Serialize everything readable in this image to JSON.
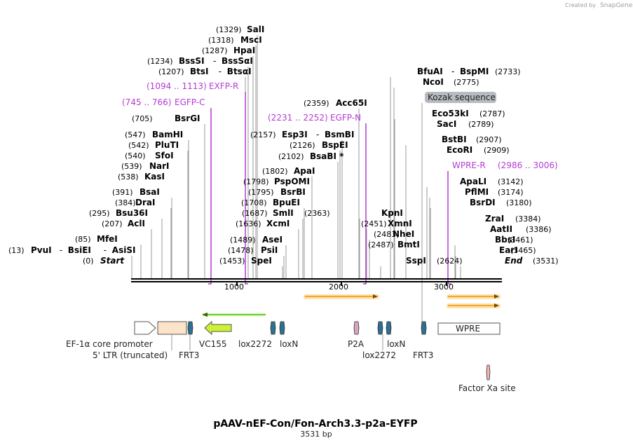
{
  "map": {
    "title": "pAAV-nEF-Con/Fon-Arch3.3-p2a-EYFP",
    "subtitle": "3531 bp",
    "length": 3531,
    "credit": "Created by",
    "brand": "SnapGene"
  },
  "ticks": [
    "1000",
    "2000",
    "3000"
  ],
  "colors": {
    "primer": "#b43cd2",
    "orf": "#f5a623",
    "green_arrow": "#66cc33",
    "lox_frt": "#2f6f8f"
  },
  "sites": [
    {
      "pos": "(13)",
      "name": "PvuI",
      "extra": [
        {
          "sep": "-",
          "name": "BsiEI"
        },
        {
          "sep": "-",
          "name": "AsiSI"
        }
      ]
    },
    {
      "pos": "(0)",
      "name": "Start",
      "italic": true
    },
    {
      "pos": "(85)",
      "name": "MfeI"
    },
    {
      "pos": "(207)",
      "name": "AclI"
    },
    {
      "pos": "(295)",
      "name": "Bsu36I"
    },
    {
      "pos": "(384)",
      "name": "DraI"
    },
    {
      "pos": "(391)",
      "name": "BsaI"
    },
    {
      "pos": "(538)",
      "name": "KasI"
    },
    {
      "pos": "(539)",
      "name": "NarI"
    },
    {
      "pos": "(540)",
      "name": "SfoI"
    },
    {
      "pos": "(542)",
      "name": "PluTI"
    },
    {
      "pos": "(547)",
      "name": "BamHI"
    },
    {
      "pos": "(705)",
      "name": "BsrGI"
    },
    {
      "pos": "(1207)",
      "name": "BtsI",
      "extra": [
        {
          "sep": "-",
          "name": "BtsαI"
        }
      ]
    },
    {
      "pos": "(1234)",
      "name": "BssSI",
      "extra": [
        {
          "sep": "-",
          "name": "BssSαI"
        }
      ]
    },
    {
      "pos": "(1287)",
      "name": "HpaI"
    },
    {
      "pos": "(1318)",
      "name": "MscI"
    },
    {
      "pos": "(1329)",
      "name": "SalI"
    },
    {
      "pos": "(1453)",
      "name": "SpeI"
    },
    {
      "pos": "(1478)",
      "name": "PsiI"
    },
    {
      "pos": "(1489)",
      "name": "AseI"
    },
    {
      "pos": "(1636)",
      "name": "XcmI"
    },
    {
      "pos": "(1687)",
      "name": "SmlI"
    },
    {
      "pos": "(1708)",
      "name": "BpuEI"
    },
    {
      "pos": "(1795)",
      "name": "BsrBI"
    },
    {
      "pos": "(1798)",
      "name": "PspOMI"
    },
    {
      "pos": "(1802)",
      "name": "ApaI"
    },
    {
      "pos": "(2102)",
      "name": "BsaBI *"
    },
    {
      "pos": "(2126)",
      "name": "BspEI"
    },
    {
      "pos": "(2157)",
      "name": "Esp3I",
      "extra": [
        {
          "sep": "-",
          "name": "BsmBI"
        }
      ]
    },
    {
      "pos": "(2359)",
      "name": "Acc65I"
    },
    {
      "pos": "(2363)",
      "name": "KpnI"
    },
    {
      "pos": "(2451)",
      "name": "XmnI"
    },
    {
      "pos": "(2483)",
      "name": "NheI"
    },
    {
      "pos": "(2487)",
      "name": "BmtI"
    },
    {
      "pos": "(2624)",
      "name": "SspI"
    },
    {
      "pos": "(2733)",
      "name": "BfuAI",
      "extra": [
        {
          "sep": "-",
          "name": "BspMI"
        }
      ]
    },
    {
      "pos": "(2775)",
      "name": "NcoI"
    },
    {
      "pos": "(2787)",
      "name": "Eco53kI"
    },
    {
      "pos": "(2789)",
      "name": "SacI"
    },
    {
      "pos": "(2907)",
      "name": "BstBI"
    },
    {
      "pos": "(2909)",
      "name": "EcoRI"
    },
    {
      "pos": "(3142)",
      "name": "ApaLI"
    },
    {
      "pos": "(3174)",
      "name": "PflMI"
    },
    {
      "pos": "(3180)",
      "name": "BsrDI"
    },
    {
      "pos": "(3384)",
      "name": "ZraI"
    },
    {
      "pos": "(3386)",
      "name": "AatII"
    },
    {
      "pos": "(3461)",
      "name": "BbsI"
    },
    {
      "pos": "(3465)",
      "name": "EarI"
    },
    {
      "pos": "(3531)",
      "name": "End",
      "italic": true
    }
  ],
  "primers": [
    {
      "range": "(1094 .. 1113)",
      "name": "EXFP-R"
    },
    {
      "range": "(745 .. 766)",
      "name": "EGFP-C"
    },
    {
      "range": "(2231 .. 2252)",
      "name": "EGFP-N"
    },
    {
      "range": "(2986 .. 3006)",
      "name": "WPRE-R"
    }
  ],
  "kozak_label": "Kozak sequence",
  "features": [
    {
      "name": "EF-1α core promoter"
    },
    {
      "name": "5' LTR (truncated)"
    },
    {
      "name": "FRT3"
    },
    {
      "name": "VC155"
    },
    {
      "name": "lox2272"
    },
    {
      "name": "loxN"
    },
    {
      "name": "P2A"
    },
    {
      "name": "lox2272"
    },
    {
      "name": "loxN"
    },
    {
      "name": "FRT3"
    },
    {
      "name": "WPRE"
    },
    {
      "name": "Factor Xa site"
    }
  ]
}
